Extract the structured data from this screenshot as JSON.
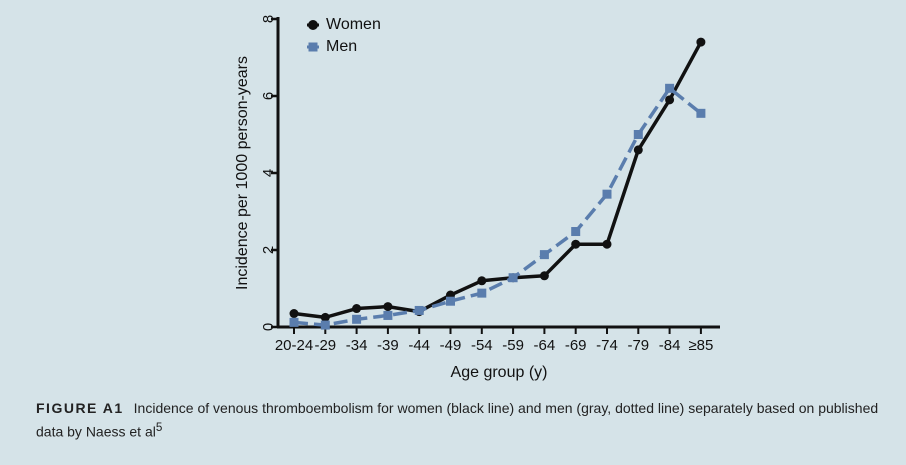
{
  "chart_data": {
    "type": "line",
    "categories": [
      "20-24",
      "-29",
      "-34",
      "-39",
      "-44",
      "-49",
      "-54",
      "-59",
      "-64",
      "-69",
      "-74",
      "-79",
      "-84",
      "≥85"
    ],
    "ylabel": "Incidence per 1000 person-years",
    "xlabel": "Age group (y)",
    "ylim": [
      0,
      8
    ],
    "yticks": [
      0,
      2,
      4,
      6,
      8
    ],
    "legend_position": "top-left",
    "series": [
      {
        "name": "Women",
        "color": "#111111",
        "style": "solid",
        "marker": "circle",
        "values": [
          0.35,
          0.25,
          0.48,
          0.53,
          0.4,
          0.83,
          1.2,
          1.28,
          1.33,
          2.15,
          2.15,
          4.6,
          5.9,
          7.4
        ]
      },
      {
        "name": "Men",
        "color": "#5a7dad",
        "style": "dashed",
        "marker": "square",
        "values": [
          0.12,
          0.05,
          0.2,
          0.3,
          0.43,
          0.67,
          0.88,
          1.28,
          1.88,
          2.48,
          3.45,
          5.0,
          6.2,
          5.55
        ]
      }
    ]
  },
  "caption": {
    "label": "FIGURE A1",
    "text": "Incidence of venous thromboembolism for women (black line) and men (gray, dotted line) separately based on published data by Naess et al",
    "superscript": "5"
  }
}
